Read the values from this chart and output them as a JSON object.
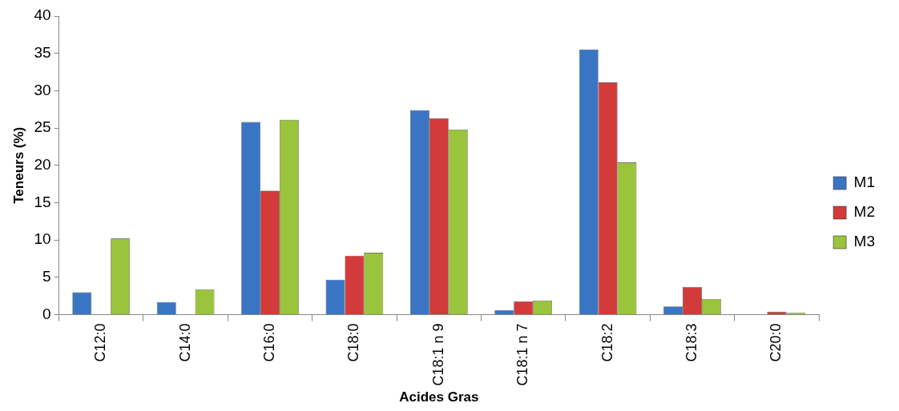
{
  "chart_data": {
    "type": "bar",
    "xlabel": "Acides Gras",
    "ylabel": "Teneurs (%)",
    "categories": [
      "C12:0",
      "C14:0",
      "C16:0",
      "C18:0",
      "C18:1 n 9",
      "C18:1 n 7",
      "C18:2",
      "C18:3",
      "C20:0"
    ],
    "series": [
      {
        "name": "M1",
        "color": "#3a75c4",
        "values": [
          3.0,
          1.7,
          25.8,
          4.7,
          27.4,
          0.6,
          35.5,
          1.1,
          0
        ]
      },
      {
        "name": "M2",
        "color": "#d33a3a",
        "values": [
          0,
          0,
          16.6,
          7.9,
          26.3,
          1.8,
          31.1,
          3.7,
          0.4
        ]
      },
      {
        "name": "M3",
        "color": "#9ac43c",
        "values": [
          10.2,
          3.4,
          26.1,
          8.3,
          24.8,
          1.9,
          20.4,
          2.1,
          0.3
        ]
      }
    ],
    "ylim": [
      0,
      40
    ],
    "yticks": [
      0,
      5,
      10,
      15,
      20,
      25,
      30,
      35,
      40
    ],
    "grid": false,
    "legend": "right"
  }
}
